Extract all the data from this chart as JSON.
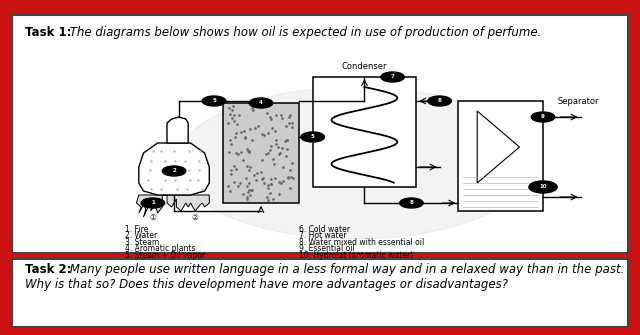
{
  "bg_color": "#cc1111",
  "box_color": "#ffffff",
  "box_border": "#444444",
  "task1_bold": "Task 1:",
  "task1_italic": " The diagrams below shows how oil is expected in use of production of perfume.",
  "task2_bold": "Task 2:",
  "task2_line1": " Many people use written language in a less formal way and in a relaxed way than in the past.",
  "task2_line2": "Why is that so? Does this development have more advantages or disadvantages?",
  "legend_left": [
    "1. Fire",
    "2. Water",
    "3. Steam",
    "4. Aromatic plants",
    "5. Steam + Oil vapor"
  ],
  "legend_right": [
    "6. Cold water",
    "7. Hot water",
    "8. Water mixed with essential oil",
    "9. Essential oil",
    "10. Hydrolat (aromatic water)"
  ],
  "condenser_label": "Condenser",
  "separator_label": "Separator",
  "font_size_task": 8.5,
  "font_size_legend": 6.5
}
